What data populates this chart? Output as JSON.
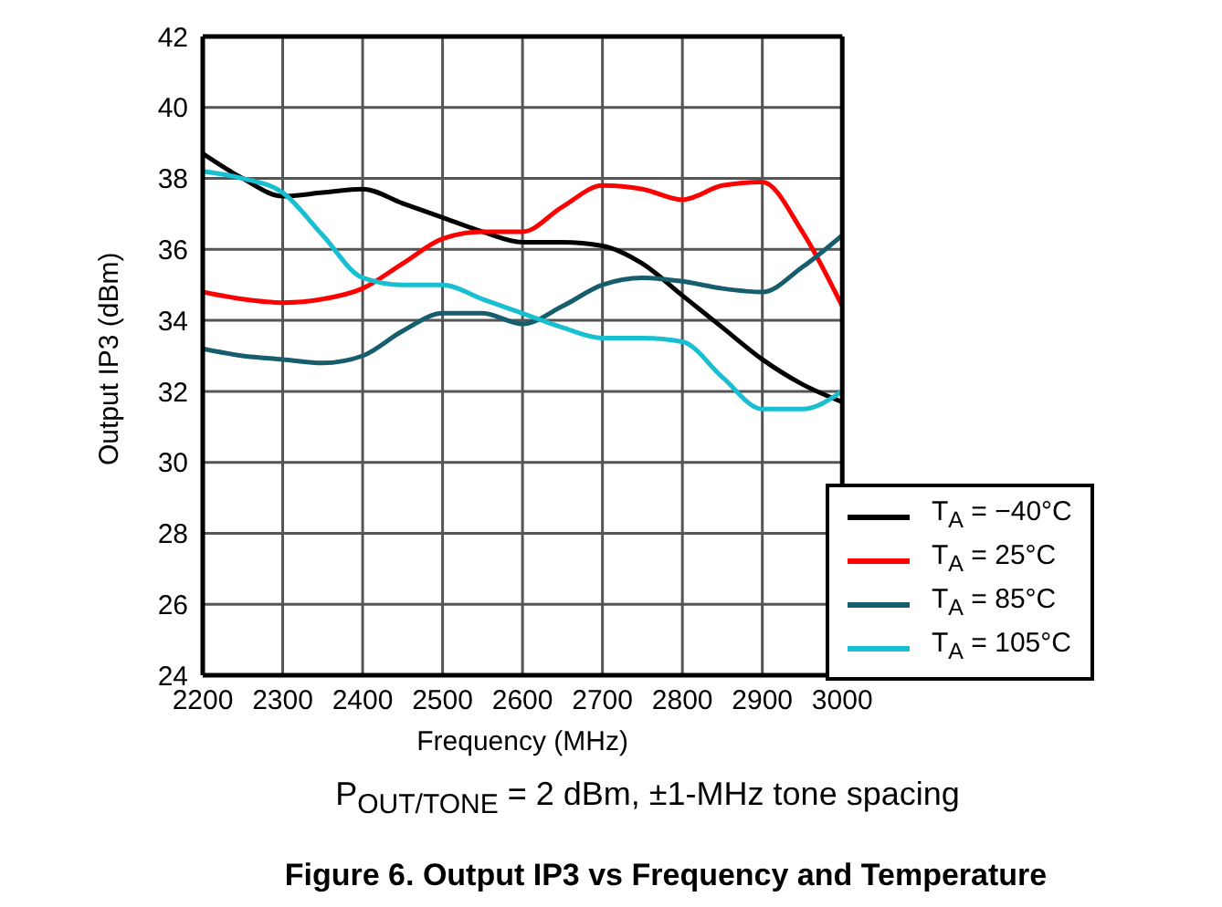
{
  "chart_data": {
    "type": "line",
    "title": "Figure 6. Output IP3 vs Frequency and Temperature",
    "xlabel": "Frequency (MHz)",
    "ylabel": "Output IP3 (dBm)",
    "annotations": [
      "P$_{OUT/TONE}$ = 2 dBm, ±1-MHz tone spacing"
    ],
    "x": [
      2200,
      2250,
      2300,
      2350,
      2400,
      2450,
      2500,
      2550,
      2600,
      2650,
      2700,
      2750,
      2800,
      2850,
      2900,
      2950,
      3000
    ],
    "series": [
      {
        "name": "T$_{A}$ = −40°C",
        "color": "#000000",
        "values": [
          38.7,
          38.0,
          37.5,
          37.6,
          37.7,
          37.3,
          36.9,
          36.5,
          36.2,
          36.2,
          36.1,
          35.6,
          34.7,
          33.8,
          32.9,
          32.2,
          31.7
        ]
      },
      {
        "name": "T$_{A}$ = 25°C",
        "color": "#ff0000",
        "values": [
          34.8,
          34.6,
          34.5,
          34.6,
          34.9,
          35.6,
          36.3,
          36.5,
          36.5,
          37.2,
          37.8,
          37.7,
          37.4,
          37.8,
          37.9,
          36.5,
          34.4
        ]
      },
      {
        "name": "T$_{A}$ = 85°C",
        "color": "#165e6e",
        "values": [
          33.2,
          33.0,
          32.9,
          32.8,
          33.0,
          33.7,
          34.2,
          34.2,
          33.9,
          34.4,
          35.0,
          35.2,
          35.1,
          34.9,
          34.8,
          35.5,
          36.4
        ]
      },
      {
        "name": "T$_{A}$ = 105°C",
        "color": "#17bfd0",
        "values": [
          38.2,
          38.0,
          37.6,
          36.4,
          35.2,
          35.0,
          35.0,
          34.6,
          34.2,
          33.8,
          33.5,
          33.5,
          33.4,
          32.4,
          31.5,
          31.5,
          32.0
        ]
      }
    ],
    "xlim": [
      2200,
      3000
    ],
    "xticks": [
      2200,
      2300,
      2400,
      2500,
      2600,
      2700,
      2800,
      2900,
      3000
    ],
    "ylim": [
      24,
      42
    ],
    "yticks": [
      24,
      26,
      28,
      30,
      32,
      34,
      36,
      38,
      40,
      42
    ],
    "grid": true,
    "legend": "bottom right",
    "marker": "none",
    "line_style": "solid"
  }
}
